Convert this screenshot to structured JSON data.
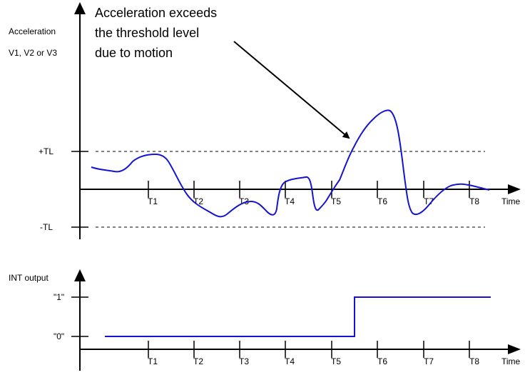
{
  "colors": {
    "signal": "#1414d2",
    "axis": "#000000",
    "background": "#ffffff"
  },
  "annotation": {
    "lines": [
      "Acceleration exceeds",
      "the threshold level",
      "due to motion"
    ]
  },
  "top_plot": {
    "y_label_lines": [
      "Acceleration",
      "V1, V2 or V3"
    ],
    "threshold_labels": {
      "upper": "+TL",
      "lower": "-TL"
    },
    "x_label": "Time",
    "ticks": [
      "T1",
      "T2",
      "T3",
      "T4",
      "T5",
      "T6",
      "T7",
      "T8"
    ]
  },
  "bottom_plot": {
    "y_label": "INT output",
    "levels": {
      "high": "\"1\"",
      "low": "\"0\""
    },
    "x_label": "Time",
    "ticks": [
      "T1",
      "T2",
      "T3",
      "T4",
      "T5",
      "T6",
      "T7",
      "T8"
    ]
  }
}
